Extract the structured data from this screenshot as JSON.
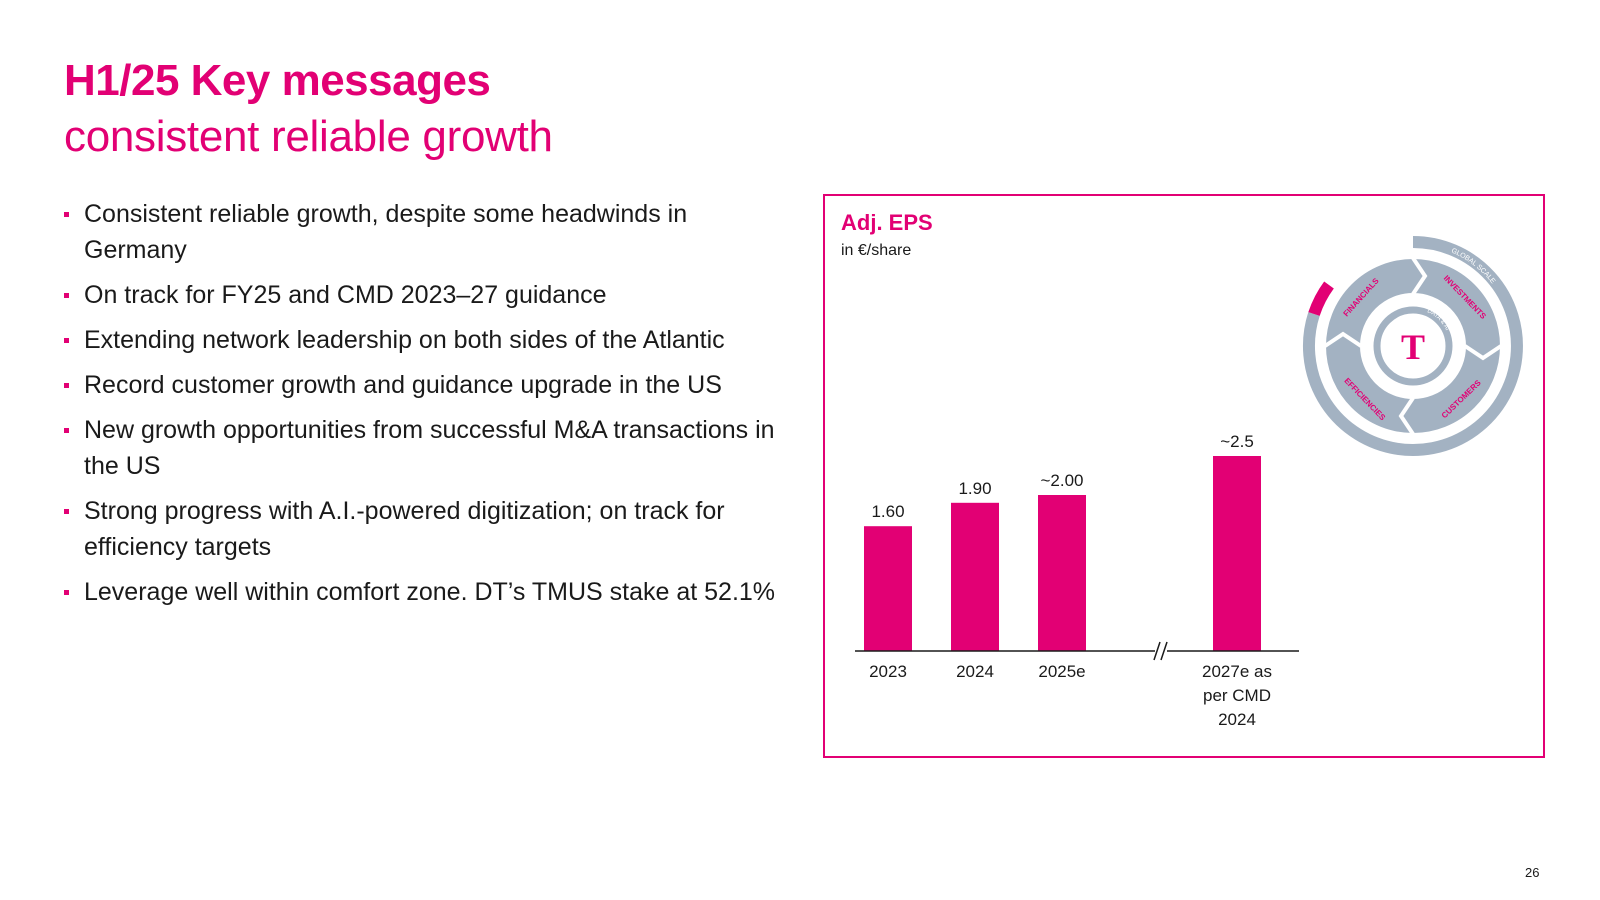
{
  "slide": {
    "title_bold": "H1/25 Key messages",
    "title_light": "consistent reliable growth",
    "page_number": "26"
  },
  "bullets": [
    "Consistent reliable growth, despite some headwinds in Germany",
    "On track for FY25 and CMD 2023–27 guidance",
    "Extending network leadership on both sides of the Atlantic",
    "Record customer growth and guidance upgrade in the US",
    "New growth opportunities from successful M&A transactions in the US",
    "Strong progress with A.I.-powered digitization; on track for efficiency targets",
    "Leverage well within comfort zone. DT’s TMUS stake at 52.1%"
  ],
  "chart_data": {
    "type": "bar",
    "title": "Adj. EPS",
    "subtitle": "in €/share",
    "categories": [
      [
        "2023"
      ],
      [
        "2024"
      ],
      [
        "2025e"
      ],
      [
        "2027e as",
        "per CMD",
        "2024"
      ]
    ],
    "values": [
      1.6,
      1.9,
      2.0,
      2.5
    ],
    "labels": [
      "1.60",
      "1.90",
      "~2.00",
      "~2.5"
    ],
    "axis_break_before_index": 3,
    "bar_color": "#e20074",
    "ylim": [
      0,
      2.5
    ]
  },
  "graphic": {
    "brand_mark": "T",
    "ring_labels": [
      "FINANCIALS",
      "INVESTMENTS",
      "CUSTOMERS",
      "EFFICIENCIES"
    ],
    "outer_label": "GLOBAL SCALE",
    "inner_label": "DATA & AI",
    "brand_color": "#e20074",
    "ring_color": "#a3b2c2"
  }
}
